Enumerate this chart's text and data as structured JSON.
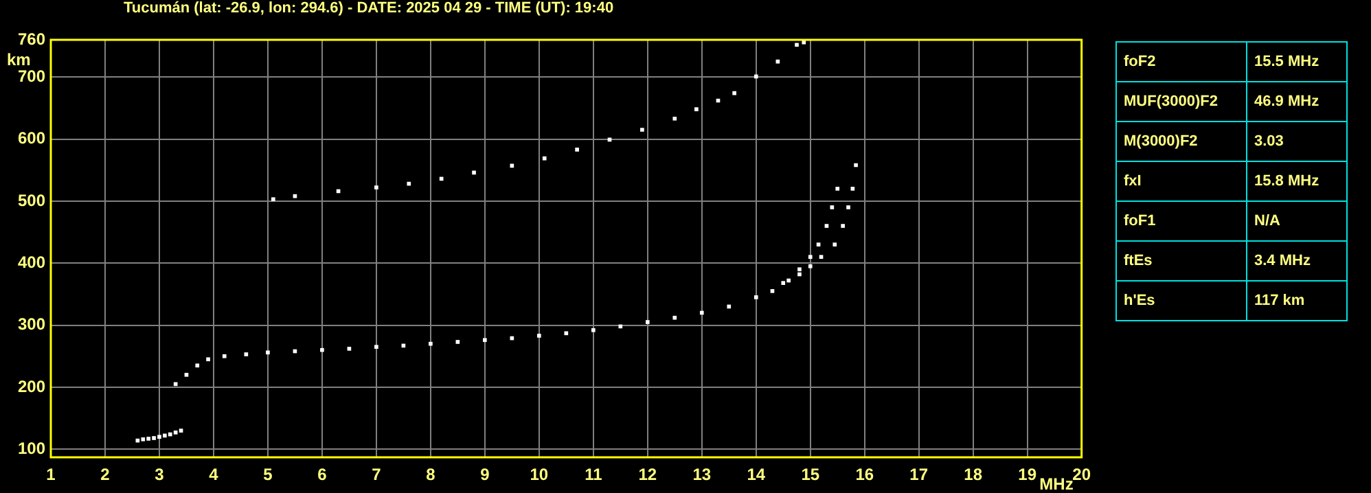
{
  "chart_data": {
    "type": "scatter",
    "title": "Tucumán (lat: -26.9, lon: 294.6) - DATE: 2025 04 29 - TIME (UT): 19:40",
    "xlabel": "MHz",
    "ylabel": "km",
    "xlim": [
      1,
      20
    ],
    "xticks": [
      1,
      2,
      3,
      4,
      5,
      6,
      7,
      8,
      9,
      10,
      11,
      12,
      13,
      14,
      15,
      16,
      17,
      18,
      19,
      20
    ],
    "ylim": [
      87,
      760
    ],
    "yticks": [
      100,
      200,
      300,
      400,
      500,
      600,
      700,
      760
    ],
    "grid": true,
    "legend": false,
    "marker": "square",
    "series": [
      {
        "color": "#ffffff",
        "x": [
          2.6,
          2.7,
          2.8,
          2.9,
          3.0,
          3.1,
          3.2,
          3.3,
          3.4
        ],
        "values": [
          114,
          116,
          117,
          118,
          120,
          122,
          124,
          127,
          130
        ]
      },
      {
        "color": "#ffffff",
        "x": [
          3.3,
          3.5,
          3.7,
          3.9,
          4.2,
          4.6,
          5,
          5.5,
          6,
          6.5,
          7,
          7.5,
          8,
          8.5,
          9,
          9.5,
          10,
          10.5,
          11,
          11.5,
          12,
          12.5,
          13,
          13.5,
          14,
          14.3,
          14.6,
          14.8,
          15.0,
          15.15,
          15.3,
          15.4,
          15.5
        ],
        "values": [
          205,
          220,
          235,
          245,
          250,
          253,
          256,
          258,
          260,
          262,
          265,
          267,
          270,
          273,
          276,
          279,
          283,
          287,
          292,
          298,
          305,
          312,
          320,
          330,
          345,
          355,
          372,
          390,
          410,
          430,
          460,
          490,
          520
        ]
      },
      {
        "color": "#ffffff",
        "x": [
          14.5,
          14.8,
          15.0,
          15.2,
          15.45,
          15.6,
          15.7,
          15.78,
          15.84
        ],
        "values": [
          368,
          382,
          395,
          410,
          430,
          460,
          490,
          520,
          558
        ]
      },
      {
        "color": "#ffffff",
        "x": [
          5.1,
          5.5,
          6.3,
          7,
          7.6,
          8.2,
          8.8,
          9.5,
          10.1,
          10.7,
          11.3,
          11.9,
          12.5,
          12.9,
          13.3,
          13.6,
          14.0,
          14.4,
          14.75,
          14.88
        ],
        "values": [
          503,
          508,
          516,
          522,
          528,
          536,
          546,
          557,
          569,
          583,
          599,
          615,
          633,
          648,
          662,
          674,
          701,
          725,
          752,
          756
        ]
      }
    ],
    "annotations": [
      "foF2",
      "15.5 MHz",
      "MUF(3000)F2",
      "46.9 MHz",
      "M(3000)F2",
      "3.03",
      "fxI",
      "15.8 MHz",
      "foF1",
      "N/A",
      "ftEs",
      "3.4 MHz",
      "h'Es",
      "117 km"
    ]
  }
}
